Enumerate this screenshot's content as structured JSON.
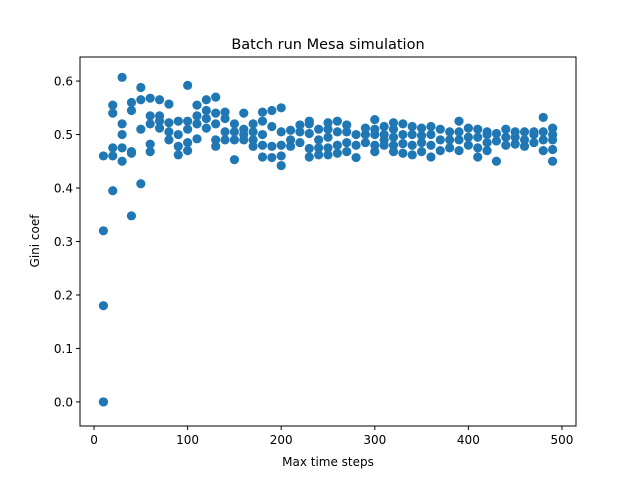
{
  "chart_data": {
    "type": "scatter",
    "title": "Batch run Mesa simulation",
    "xlabel": "Max time steps",
    "ylabel": "Gini coef",
    "xlim": [
      -15,
      515
    ],
    "ylim": [
      -0.045,
      0.645
    ],
    "xticks": [
      0,
      100,
      200,
      300,
      400,
      500
    ],
    "xtick_labels": [
      "0",
      "100",
      "200",
      "300",
      "400",
      "500"
    ],
    "yticks": [
      0.0,
      0.1,
      0.2,
      0.3,
      0.4,
      0.5,
      0.6
    ],
    "ytick_labels": [
      "0.0",
      "0.1",
      "0.2",
      "0.3",
      "0.4",
      "0.5",
      "0.6"
    ],
    "grid": false,
    "color": "#1f77b4",
    "points": [
      [
        10,
        0.0
      ],
      [
        10,
        0.0
      ],
      [
        10,
        0.18
      ],
      [
        10,
        0.32
      ],
      [
        10,
        0.46
      ],
      [
        20,
        0.395
      ],
      [
        20,
        0.46
      ],
      [
        20,
        0.475
      ],
      [
        20,
        0.54
      ],
      [
        20,
        0.555
      ],
      [
        30,
        0.45
      ],
      [
        30,
        0.475
      ],
      [
        30,
        0.5
      ],
      [
        30,
        0.52
      ],
      [
        30,
        0.607
      ],
      [
        40,
        0.348
      ],
      [
        40,
        0.465
      ],
      [
        40,
        0.468
      ],
      [
        40,
        0.545
      ],
      [
        40,
        0.56
      ],
      [
        50,
        0.408
      ],
      [
        50,
        0.51
      ],
      [
        50,
        0.565
      ],
      [
        50,
        0.588
      ],
      [
        60,
        0.468
      ],
      [
        60,
        0.482
      ],
      [
        60,
        0.52
      ],
      [
        60,
        0.535
      ],
      [
        60,
        0.568
      ],
      [
        70,
        0.512
      ],
      [
        70,
        0.525
      ],
      [
        70,
        0.535
      ],
      [
        70,
        0.565
      ],
      [
        80,
        0.49
      ],
      [
        80,
        0.505
      ],
      [
        80,
        0.522
      ],
      [
        80,
        0.557
      ],
      [
        90,
        0.462
      ],
      [
        90,
        0.478
      ],
      [
        90,
        0.5
      ],
      [
        90,
        0.525
      ],
      [
        100,
        0.47
      ],
      [
        100,
        0.485
      ],
      [
        100,
        0.51
      ],
      [
        100,
        0.525
      ],
      [
        100,
        0.592
      ],
      [
        110,
        0.492
      ],
      [
        110,
        0.52
      ],
      [
        110,
        0.535
      ],
      [
        110,
        0.555
      ],
      [
        120,
        0.512
      ],
      [
        120,
        0.53
      ],
      [
        120,
        0.545
      ],
      [
        120,
        0.565
      ],
      [
        130,
        0.478
      ],
      [
        130,
        0.49
      ],
      [
        130,
        0.52
      ],
      [
        130,
        0.54
      ],
      [
        130,
        0.57
      ],
      [
        140,
        0.49
      ],
      [
        140,
        0.505
      ],
      [
        140,
        0.53
      ],
      [
        140,
        0.542
      ],
      [
        150,
        0.453
      ],
      [
        150,
        0.49
      ],
      [
        150,
        0.505
      ],
      [
        150,
        0.52
      ],
      [
        160,
        0.49
      ],
      [
        160,
        0.5
      ],
      [
        160,
        0.51
      ],
      [
        160,
        0.54
      ],
      [
        170,
        0.478
      ],
      [
        170,
        0.49
      ],
      [
        170,
        0.505
      ],
      [
        170,
        0.52
      ],
      [
        180,
        0.458
      ],
      [
        180,
        0.48
      ],
      [
        180,
        0.5
      ],
      [
        180,
        0.525
      ],
      [
        180,
        0.542
      ],
      [
        190,
        0.457
      ],
      [
        190,
        0.478
      ],
      [
        190,
        0.515
      ],
      [
        190,
        0.545
      ],
      [
        200,
        0.442
      ],
      [
        200,
        0.46
      ],
      [
        200,
        0.48
      ],
      [
        200,
        0.505
      ],
      [
        200,
        0.55
      ],
      [
        210,
        0.478
      ],
      [
        210,
        0.49
      ],
      [
        210,
        0.508
      ],
      [
        220,
        0.485
      ],
      [
        220,
        0.505
      ],
      [
        220,
        0.518
      ],
      [
        230,
        0.458
      ],
      [
        230,
        0.474
      ],
      [
        230,
        0.502
      ],
      [
        230,
        0.52
      ],
      [
        230,
        0.525
      ],
      [
        240,
        0.462
      ],
      [
        240,
        0.475
      ],
      [
        240,
        0.49
      ],
      [
        240,
        0.51
      ],
      [
        250,
        0.462
      ],
      [
        250,
        0.475
      ],
      [
        250,
        0.495
      ],
      [
        250,
        0.51
      ],
      [
        250,
        0.522
      ],
      [
        260,
        0.465
      ],
      [
        260,
        0.48
      ],
      [
        260,
        0.505
      ],
      [
        260,
        0.525
      ],
      [
        270,
        0.468
      ],
      [
        270,
        0.485
      ],
      [
        270,
        0.505
      ],
      [
        270,
        0.518
      ],
      [
        280,
        0.457
      ],
      [
        280,
        0.48
      ],
      [
        280,
        0.5
      ],
      [
        290,
        0.485
      ],
      [
        290,
        0.5
      ],
      [
        290,
        0.512
      ],
      [
        300,
        0.468
      ],
      [
        300,
        0.48
      ],
      [
        300,
        0.5
      ],
      [
        300,
        0.51
      ],
      [
        300,
        0.528
      ],
      [
        310,
        0.48
      ],
      [
        310,
        0.49
      ],
      [
        310,
        0.5
      ],
      [
        310,
        0.515
      ],
      [
        320,
        0.468
      ],
      [
        320,
        0.48
      ],
      [
        320,
        0.495
      ],
      [
        320,
        0.51
      ],
      [
        320,
        0.522
      ],
      [
        330,
        0.465
      ],
      [
        330,
        0.483
      ],
      [
        330,
        0.5
      ],
      [
        330,
        0.52
      ],
      [
        340,
        0.462
      ],
      [
        340,
        0.48
      ],
      [
        340,
        0.5
      ],
      [
        340,
        0.515
      ],
      [
        350,
        0.468
      ],
      [
        350,
        0.485
      ],
      [
        350,
        0.498
      ],
      [
        350,
        0.512
      ],
      [
        360,
        0.458
      ],
      [
        360,
        0.48
      ],
      [
        360,
        0.5
      ],
      [
        360,
        0.515
      ],
      [
        370,
        0.47
      ],
      [
        370,
        0.49
      ],
      [
        370,
        0.51
      ],
      [
        380,
        0.475
      ],
      [
        380,
        0.49
      ],
      [
        380,
        0.505
      ],
      [
        390,
        0.47
      ],
      [
        390,
        0.49
      ],
      [
        390,
        0.505
      ],
      [
        390,
        0.525
      ],
      [
        400,
        0.48
      ],
      [
        400,
        0.495
      ],
      [
        400,
        0.512
      ],
      [
        410,
        0.458
      ],
      [
        410,
        0.475
      ],
      [
        410,
        0.495
      ],
      [
        410,
        0.51
      ],
      [
        420,
        0.47
      ],
      [
        420,
        0.485
      ],
      [
        420,
        0.5
      ],
      [
        420,
        0.505
      ],
      [
        430,
        0.45
      ],
      [
        430,
        0.488
      ],
      [
        430,
        0.502
      ],
      [
        440,
        0.48
      ],
      [
        440,
        0.495
      ],
      [
        440,
        0.51
      ],
      [
        450,
        0.482
      ],
      [
        450,
        0.495
      ],
      [
        450,
        0.505
      ],
      [
        460,
        0.478
      ],
      [
        460,
        0.49
      ],
      [
        460,
        0.505
      ],
      [
        470,
        0.485
      ],
      [
        470,
        0.5
      ],
      [
        470,
        0.505
      ],
      [
        480,
        0.47
      ],
      [
        480,
        0.49
      ],
      [
        480,
        0.505
      ],
      [
        480,
        0.532
      ],
      [
        490,
        0.45
      ],
      [
        490,
        0.472
      ],
      [
        490,
        0.49
      ],
      [
        490,
        0.5
      ],
      [
        490,
        0.512
      ]
    ]
  }
}
